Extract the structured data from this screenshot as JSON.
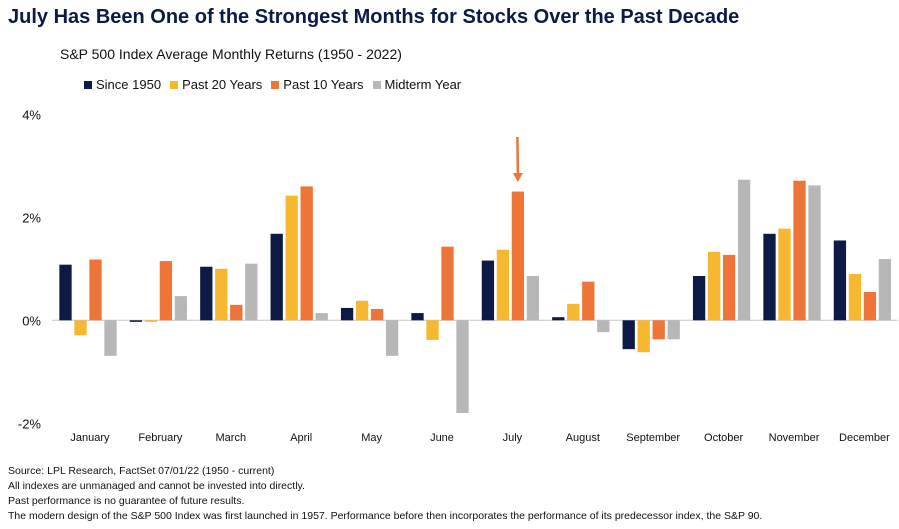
{
  "title": "July Has Been One of the Strongest Months for Stocks Over the Past Decade",
  "chart_data": {
    "type": "bar",
    "title": "S&P 500 Index Average Monthly Returns (1950 - 2022)",
    "xlabel": "",
    "ylabel": "",
    "ylim": [
      -2,
      4
    ],
    "yticks": [
      "4%",
      "2%",
      "0%",
      "-2%"
    ],
    "ytick_values": [
      4,
      2,
      0,
      -2
    ],
    "legend_position": "top-left",
    "categories": [
      "January",
      "February",
      "March",
      "April",
      "May",
      "June",
      "July",
      "August",
      "September",
      "October",
      "November",
      "December"
    ],
    "series": [
      {
        "name": "Since 1950",
        "color": "#0c1a45",
        "values": [
          1.08,
          -0.03,
          1.04,
          1.68,
          0.24,
          0.14,
          1.16,
          0.06,
          -0.56,
          0.86,
          1.68,
          1.55
        ]
      },
      {
        "name": "Past 20 Years",
        "color": "#f7b731",
        "values": [
          -0.29,
          -0.03,
          1.0,
          2.42,
          0.38,
          -0.38,
          1.37,
          0.32,
          -0.62,
          1.33,
          1.78,
          0.9
        ]
      },
      {
        "name": "Past 10 Years",
        "color": "#ee7438",
        "values": [
          1.18,
          1.15,
          0.3,
          2.6,
          0.22,
          1.43,
          2.5,
          0.75,
          -0.37,
          1.27,
          2.71,
          0.55
        ]
      },
      {
        "name": "Midterm Year",
        "color": "#b7b7b7",
        "values": [
          -0.69,
          0.47,
          1.1,
          0.14,
          -0.69,
          -1.8,
          0.86,
          -0.23,
          -0.37,
          2.73,
          2.62,
          1.19
        ]
      }
    ],
    "annotation": {
      "type": "arrow",
      "category": "July",
      "series": "Past 10 Years",
      "color": "#ee7438"
    }
  },
  "footnotes": [
    "Source: LPL Research, FactSet 07/01/22  (1950 - current)",
    "All indexes are unmanaged and cannot be invested into directly.",
    "Past performance is no guarantee of future results.",
    "The modern design of the S&P 500 Index was first launched in 1957. Performance before then incorporates the performance of its  predecessor index, the S&P 90."
  ]
}
